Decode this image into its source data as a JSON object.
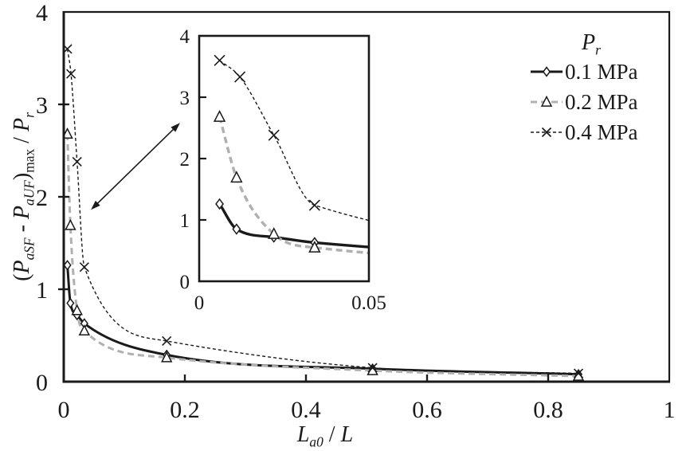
{
  "colors": {
    "ink": "#1a1a1a",
    "gray": "#b0b0b0",
    "background": "#ffffff"
  },
  "chart_data": {
    "type": "line",
    "title": "",
    "xlabel_plain": "La0 / L",
    "xlabel_parts": [
      {
        "text": "L",
        "style": "italic"
      },
      {
        "text": "a0",
        "style": "italic-sub"
      },
      {
        "text": " / ",
        "style": "normal"
      },
      {
        "text": "L",
        "style": "italic"
      }
    ],
    "ylabel_plain": "(PaSF - PaUF)max / Pr",
    "ylabel_parts": [
      {
        "text": "(",
        "style": "normal"
      },
      {
        "text": "P",
        "style": "italic"
      },
      {
        "text": "aSF",
        "style": "italic-sub"
      },
      {
        "text": " - ",
        "style": "normal"
      },
      {
        "text": "P",
        "style": "italic"
      },
      {
        "text": "aUF",
        "style": "italic-sub"
      },
      {
        "text": ")",
        "style": "normal"
      },
      {
        "text": "max",
        "style": "sub"
      },
      {
        "text": " / ",
        "style": "normal"
      },
      {
        "text": "P",
        "style": "italic"
      },
      {
        "text": "r",
        "style": "italic-sub"
      }
    ],
    "xlim": [
      0,
      1
    ],
    "ylim": [
      0,
      4
    ],
    "grid": false,
    "x_ticks": [
      {
        "v": 0,
        "label": "0"
      },
      {
        "v": 0.2,
        "label": "0.2"
      },
      {
        "v": 0.4,
        "label": "0.4"
      },
      {
        "v": 0.6,
        "label": "0.6"
      },
      {
        "v": 0.8,
        "label": "0.8"
      },
      {
        "v": 1,
        "label": "1"
      }
    ],
    "y_ticks": [
      {
        "v": 0,
        "label": "0"
      },
      {
        "v": 1,
        "label": "1"
      },
      {
        "v": 2,
        "label": "2"
      },
      {
        "v": 3,
        "label": "3"
      },
      {
        "v": 4,
        "label": "4"
      }
    ],
    "legend": {
      "position": "inside-top-right",
      "title_plain": "Pr",
      "title_parts": [
        {
          "text": "P",
          "style": "italic"
        },
        {
          "text": "r",
          "style": "italic-sub"
        }
      ]
    },
    "series": [
      {
        "name": "0.1 MPa",
        "marker": "diamond",
        "line_style": "solid",
        "color": "#1a1a1a",
        "marker_fill": "#ffffff",
        "points": [
          [
            0.006,
            1.26
          ],
          [
            0.011,
            0.85
          ],
          [
            0.022,
            0.72
          ],
          [
            0.034,
            0.63
          ],
          [
            0.17,
            0.29
          ],
          [
            0.51,
            0.14
          ],
          [
            0.85,
            0.08
          ]
        ]
      },
      {
        "name": "0.2 MPa",
        "marker": "triangle",
        "line_style": "dashed",
        "color": "#b0b0b0",
        "marker_fill": "#ffffff",
        "points": [
          [
            0.006,
            2.68
          ],
          [
            0.011,
            1.69
          ],
          [
            0.022,
            0.77
          ],
          [
            0.034,
            0.55
          ],
          [
            0.17,
            0.26
          ],
          [
            0.51,
            0.12
          ],
          [
            0.85,
            0.06
          ]
        ]
      },
      {
        "name": "0.4 MPa",
        "marker": "x",
        "line_style": "fine-dashed",
        "color": "#1a1a1a",
        "marker_fill": "none",
        "points": [
          [
            0.006,
            3.6
          ],
          [
            0.012,
            3.33
          ],
          [
            0.022,
            2.38
          ],
          [
            0.034,
            1.24
          ],
          [
            0.17,
            0.44
          ],
          [
            0.51,
            0.15
          ],
          [
            0.85,
            0.09
          ]
        ]
      }
    ],
    "inset": {
      "description": "zoom of main plot for x between 0 and 0.05",
      "xlim": [
        0,
        0.05
      ],
      "ylim": [
        0,
        4
      ],
      "x_ticks": [
        {
          "v": 0,
          "label": "0"
        },
        {
          "v": 0.05,
          "label": "0.05"
        }
      ],
      "y_ticks": [
        {
          "v": 0,
          "label": "0"
        },
        {
          "v": 1,
          "label": "1"
        },
        {
          "v": 2,
          "label": "2"
        },
        {
          "v": 3,
          "label": "3"
        },
        {
          "v": 4,
          "label": "4"
        }
      ]
    },
    "annotation_arrow": {
      "type": "double-headed",
      "from_data": [
        0.045,
        1.86
      ],
      "to_data": [
        0.192,
        2.8
      ]
    }
  }
}
